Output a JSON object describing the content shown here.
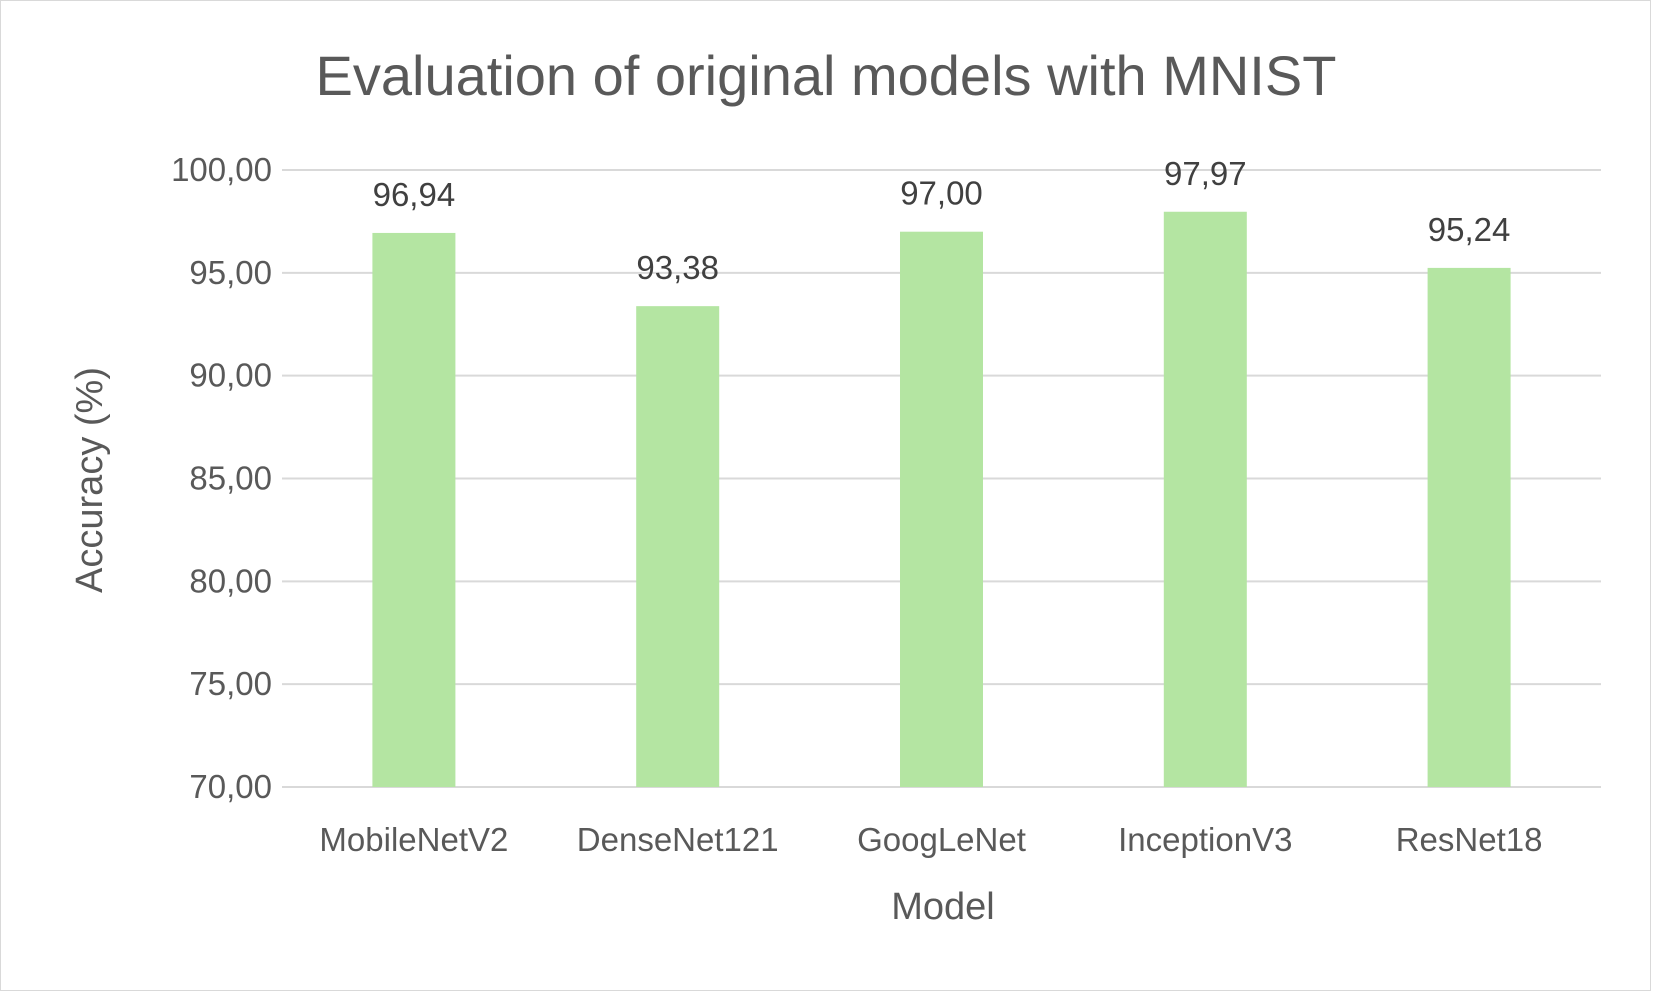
{
  "chart_data": {
    "type": "bar",
    "title": "Evaluation of original models with MNIST",
    "xlabel": "Model",
    "ylabel": "Accuracy (%)",
    "categories": [
      "MobileNetV2",
      "DenseNet121",
      "GoogLeNet",
      "InceptionV3",
      "ResNet18"
    ],
    "values": [
      96.94,
      93.38,
      97.0,
      97.97,
      95.24
    ],
    "value_labels": [
      "96,94",
      "93,38",
      "97,00",
      "97,97",
      "95,24"
    ],
    "ylim": [
      70,
      100
    ],
    "yticks": [
      70,
      75,
      80,
      85,
      90,
      95,
      100
    ],
    "ytick_labels": [
      "70,00",
      "75,00",
      "80,00",
      "85,00",
      "90,00",
      "95,00",
      "100,00"
    ],
    "grid": true,
    "legend": "none",
    "bar_color": "#b4e5a2"
  }
}
